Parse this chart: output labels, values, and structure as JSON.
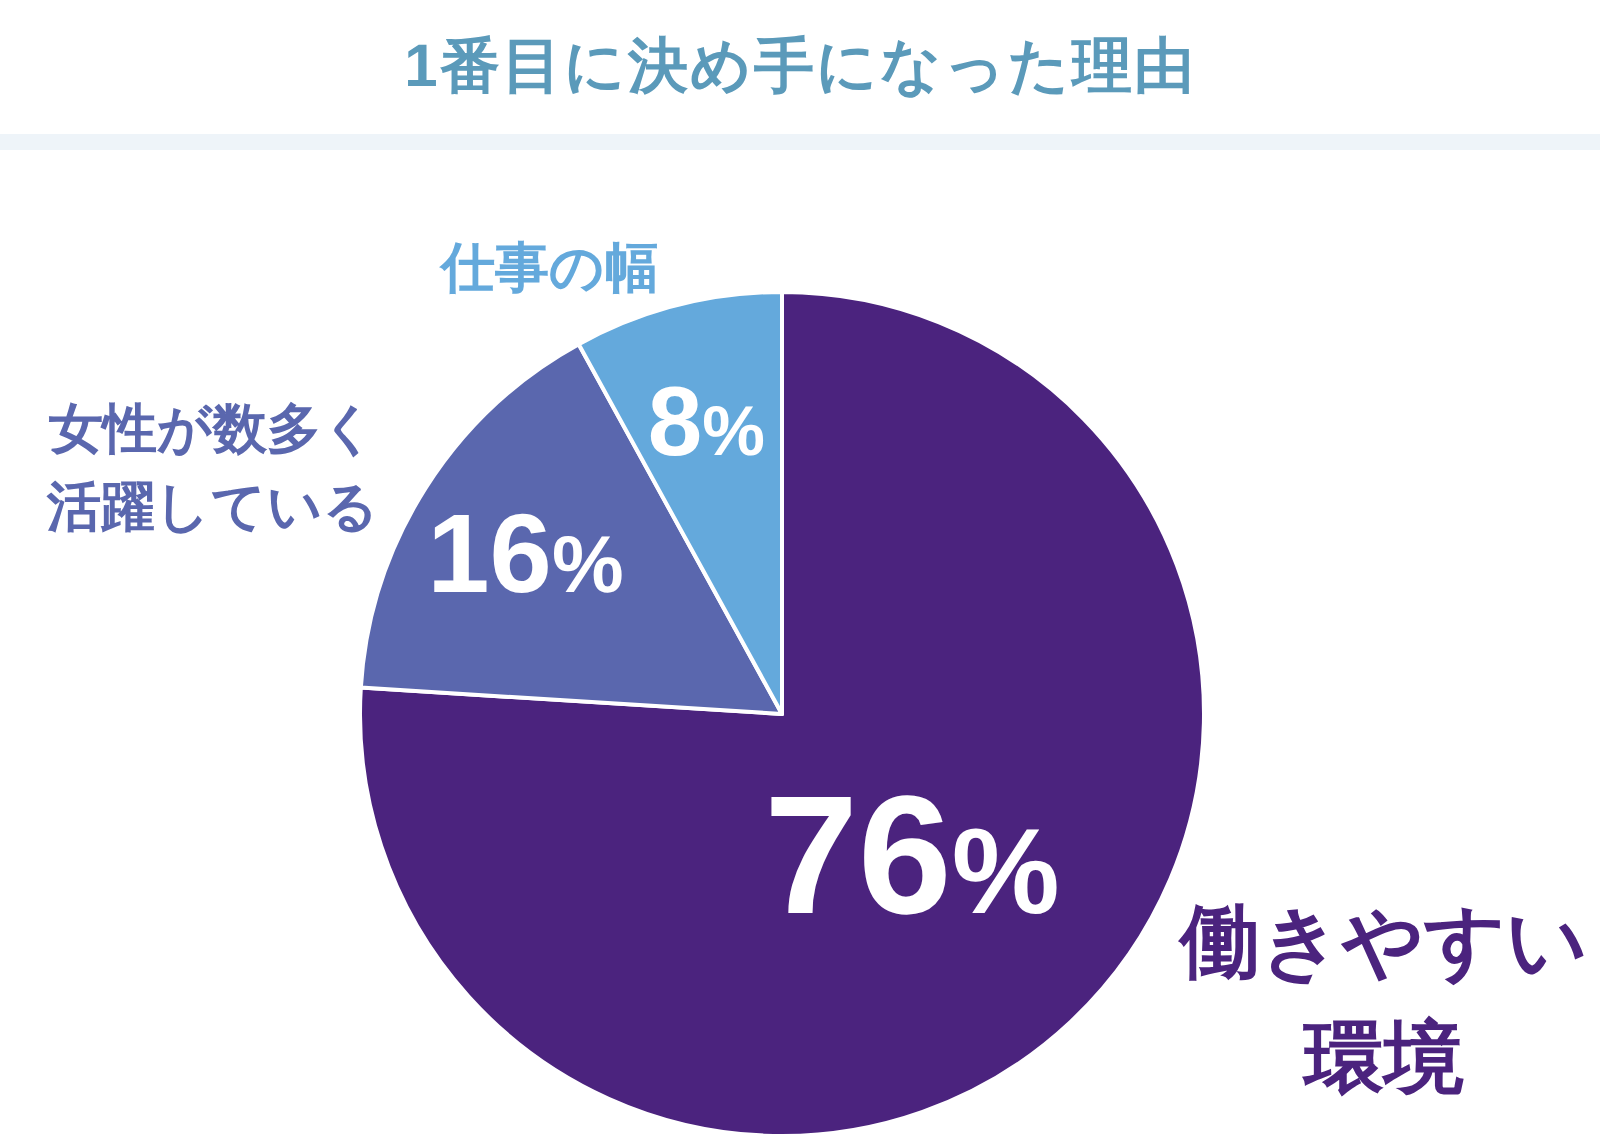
{
  "chart_data": {
    "type": "pie",
    "title": "1番目に決め手になった理由",
    "categories": [
      "働きやすい環境",
      "女性が数多く活躍している",
      "仕事の幅"
    ],
    "values": [
      76,
      16,
      8
    ],
    "colors": [
      "#4b237e",
      "#5a67ae",
      "#64a9dc"
    ],
    "value_labels": [
      "76%",
      "16%",
      "8%"
    ]
  }
}
